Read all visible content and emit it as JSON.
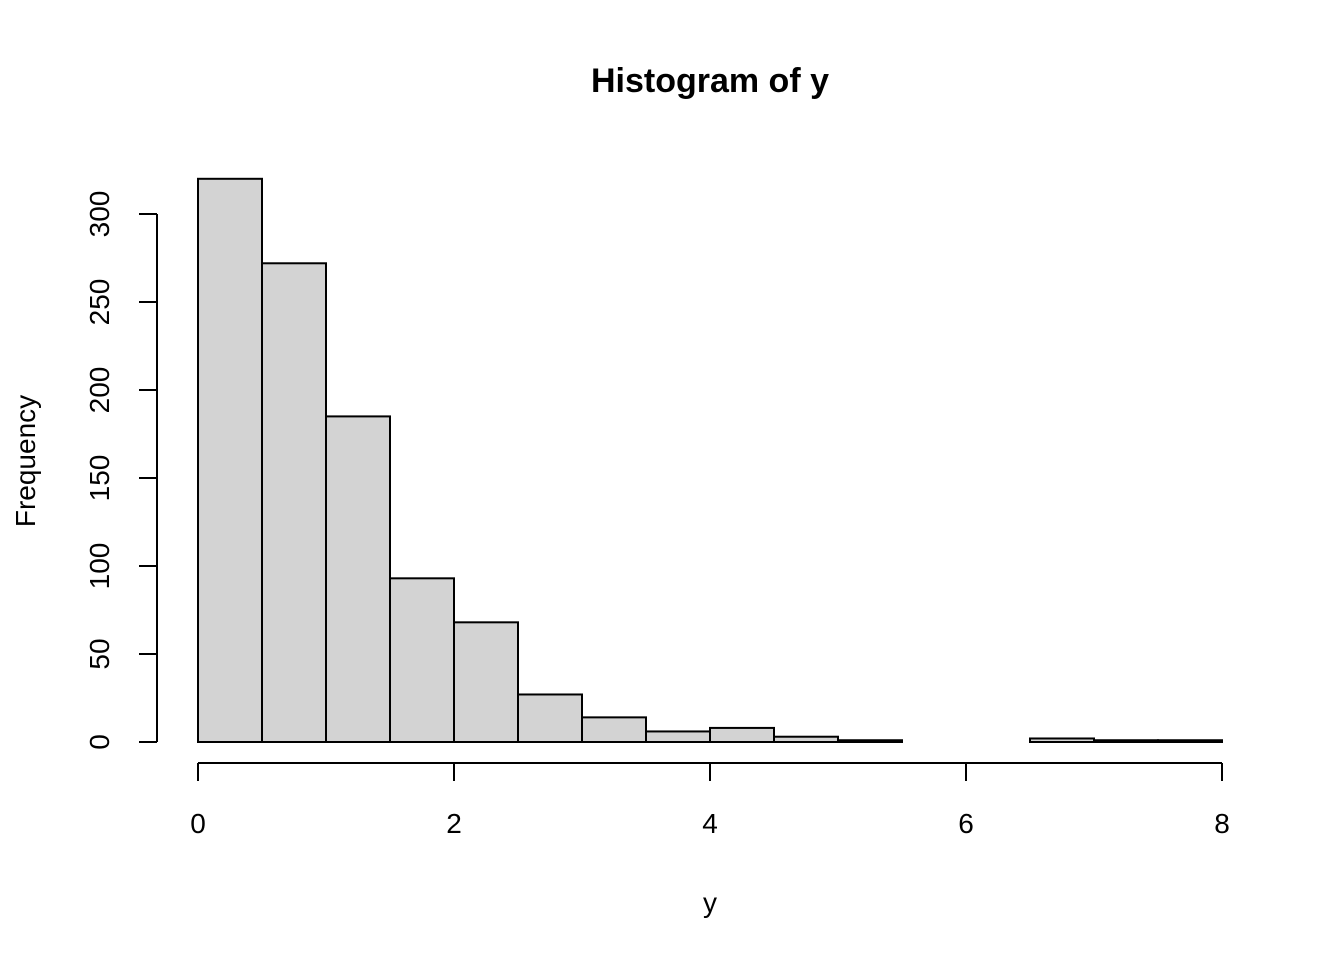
{
  "chart_data": {
    "type": "bar",
    "title": "Histogram of y",
    "xlabel": "y",
    "ylabel": "Frequency",
    "bins": [
      {
        "start": 0.0,
        "end": 0.5,
        "count": 320
      },
      {
        "start": 0.5,
        "end": 1.0,
        "count": 272
      },
      {
        "start": 1.0,
        "end": 1.5,
        "count": 185
      },
      {
        "start": 1.5,
        "end": 2.0,
        "count": 93
      },
      {
        "start": 2.0,
        "end": 2.5,
        "count": 68
      },
      {
        "start": 2.5,
        "end": 3.0,
        "count": 27
      },
      {
        "start": 3.0,
        "end": 3.5,
        "count": 14
      },
      {
        "start": 3.5,
        "end": 4.0,
        "count": 6
      },
      {
        "start": 4.0,
        "end": 4.5,
        "count": 8
      },
      {
        "start": 4.5,
        "end": 5.0,
        "count": 3
      },
      {
        "start": 5.0,
        "end": 5.5,
        "count": 1
      },
      {
        "start": 5.5,
        "end": 6.0,
        "count": 0
      },
      {
        "start": 6.0,
        "end": 6.5,
        "count": 0
      },
      {
        "start": 6.5,
        "end": 7.0,
        "count": 2
      },
      {
        "start": 7.0,
        "end": 7.5,
        "count": 1
      },
      {
        "start": 7.5,
        "end": 8.0,
        "count": 1
      }
    ],
    "xlim": [
      0,
      8
    ],
    "ylim": [
      0,
      320
    ],
    "xticks": [
      0,
      2,
      4,
      6,
      8
    ],
    "xtick_labels": [
      "0",
      "2",
      "4",
      "6",
      "8"
    ],
    "yticks": [
      0,
      50,
      100,
      150,
      200,
      250,
      300
    ],
    "ytick_labels": [
      "0",
      "50",
      "100",
      "150",
      "200",
      "250",
      "300"
    ],
    "grid": false,
    "bar_fill": "#d3d3d3",
    "bar_stroke": "#000000"
  }
}
